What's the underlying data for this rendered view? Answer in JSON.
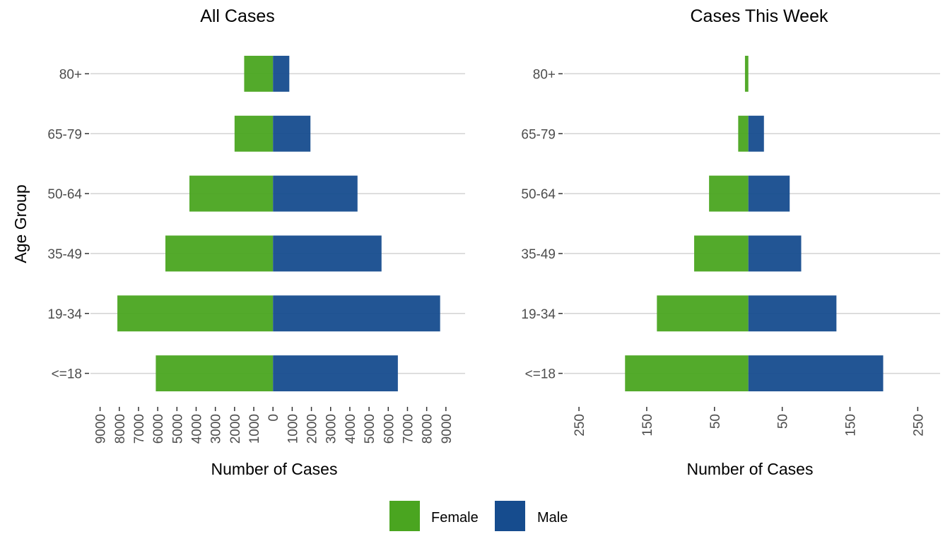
{
  "colors": {
    "female": "#4aa520",
    "male": "#164c8e"
  },
  "legend": {
    "items": [
      {
        "label": "Female",
        "color": "#4aa520"
      },
      {
        "label": "Male",
        "color": "#164c8e"
      }
    ]
  },
  "chart_data": [
    {
      "type": "bar",
      "orientation": "horizontal-population-pyramid",
      "title": "All Cases",
      "xlabel": "Number of Cases",
      "ylabel": "Age Group",
      "categories": [
        "<=18",
        "19-34",
        "35-49",
        "50-64",
        "65-79",
        "80+"
      ],
      "series": [
        {
          "name": "Female",
          "side": "left",
          "values": [
            6100,
            8100,
            5600,
            4350,
            2000,
            1500
          ]
        },
        {
          "name": "Male",
          "side": "right",
          "values": [
            6500,
            8700,
            5650,
            4400,
            1950,
            850
          ]
        }
      ],
      "xlim": [
        -9500,
        10000
      ],
      "xticks": [
        -9000,
        -8000,
        -7000,
        -6000,
        -5000,
        -4000,
        -3000,
        -2000,
        -1000,
        0,
        1000,
        2000,
        3000,
        4000,
        5000,
        6000,
        7000,
        8000,
        9000
      ],
      "xtick_labels": [
        "9000",
        "8000",
        "7000",
        "6000",
        "5000",
        "4000",
        "3000",
        "2000",
        "1000",
        "0",
        "1000",
        "2000",
        "3000",
        "4000",
        "5000",
        "6000",
        "7000",
        "8000",
        "9000"
      ],
      "grid": "horizontal"
    },
    {
      "type": "bar",
      "orientation": "horizontal-population-pyramid",
      "title": "Cases This Week",
      "xlabel": "Number of Cases",
      "ylabel": "",
      "categories": [
        "<=18",
        "19-34",
        "35-49",
        "50-64",
        "65-79",
        "80+"
      ],
      "series": [
        {
          "name": "Female",
          "side": "left",
          "values": [
            182,
            135,
            80,
            58,
            15,
            5
          ]
        },
        {
          "name": "Male",
          "side": "right",
          "values": [
            199,
            130,
            78,
            61,
            23,
            0
          ]
        }
      ],
      "xlim": [
        -272,
        283
      ],
      "xticks": [
        -250,
        -150,
        -50,
        50,
        150,
        250
      ],
      "xtick_labels": [
        "250",
        "150",
        "50",
        "50",
        "150",
        "250"
      ],
      "grid": "horizontal"
    }
  ]
}
